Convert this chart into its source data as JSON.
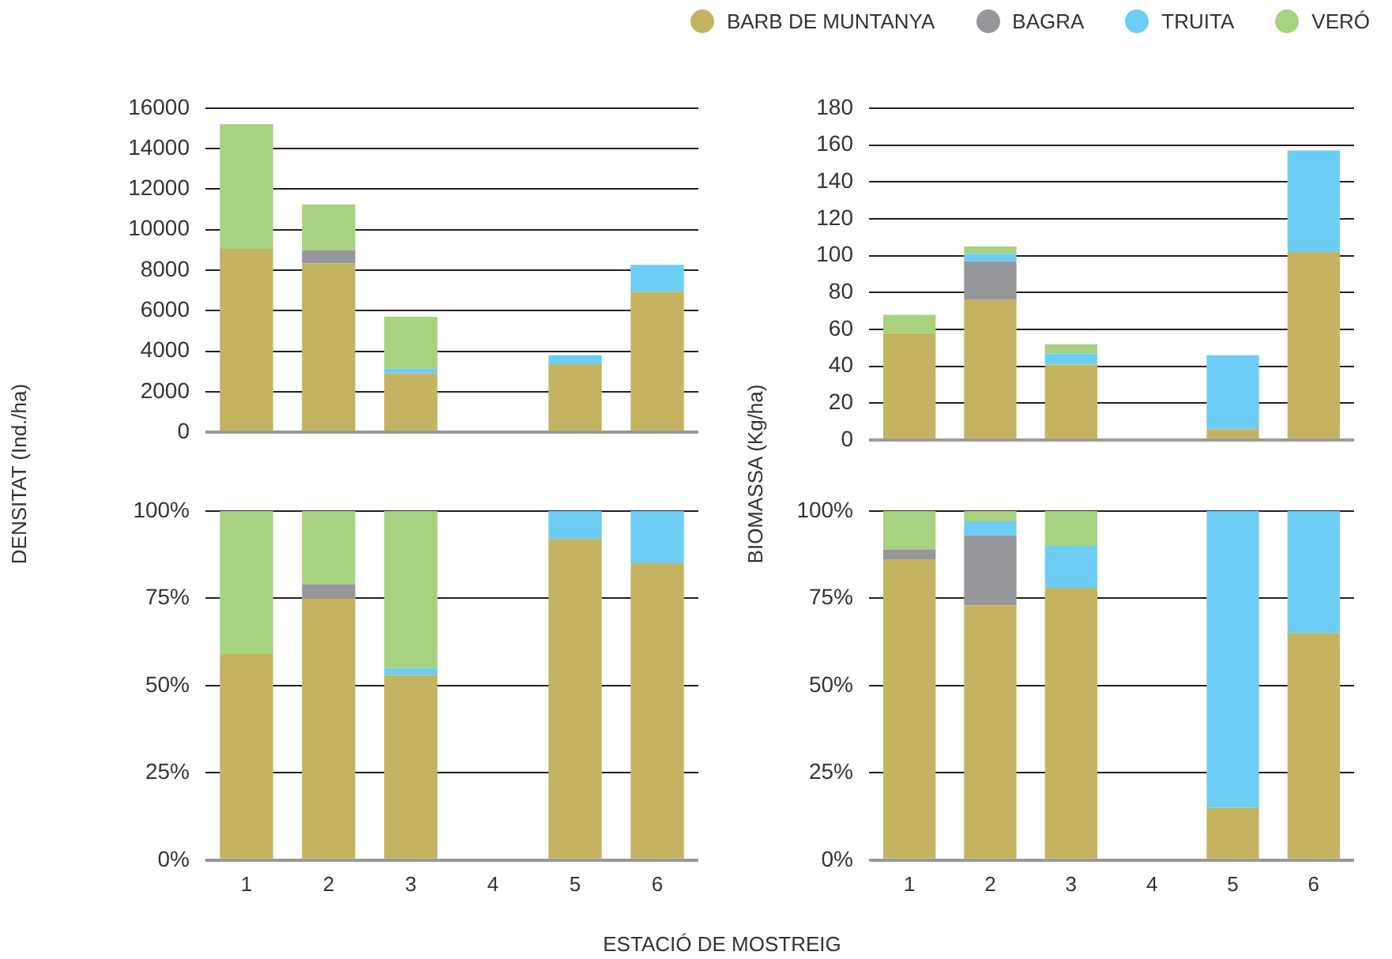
{
  "chart_data": [
    {
      "type": "bar",
      "stacked": true,
      "ylabel": "DENSITAT (Ind./ha)",
      "legend": "top right",
      "grid": "y",
      "tick_labels": "y",
      "categories": [
        "1",
        "2",
        "3",
        "4",
        "5",
        "6"
      ],
      "ylim": [
        0,
        16000
      ],
      "yticks": [
        0,
        2000,
        4000,
        6000,
        8000,
        10000,
        12000,
        14000,
        16000
      ],
      "series": [
        {
          "name": "BARB DE MUNTANYA",
          "color": "#c4b462",
          "values": [
            9050,
            8330,
            2900,
            null,
            3360,
            6940
          ]
        },
        {
          "name": "BAGRA",
          "color": "#96979b",
          "values": [
            0,
            660,
            0,
            null,
            0,
            0
          ]
        },
        {
          "name": "TRUITA",
          "color": "#6dcdf4",
          "values": [
            0,
            0,
            240,
            null,
            440,
            1320
          ]
        },
        {
          "name": "VERÓ",
          "color": "#a7d27f",
          "values": [
            6150,
            2260,
            2560,
            null,
            0,
            0
          ]
        }
      ]
    },
    {
      "type": "bar",
      "stacked": true,
      "ylabel": "BIOMASSA (Kg/ha)",
      "grid": "y",
      "tick_labels": "y",
      "categories": [
        "1",
        "2",
        "3",
        "4",
        "5",
        "6"
      ],
      "ylim": [
        0,
        180
      ],
      "yticks": [
        0,
        20,
        40,
        60,
        80,
        100,
        120,
        140,
        160,
        180
      ],
      "series": [
        {
          "color": "#c4b462",
          "values": [
            58,
            76,
            41,
            null,
            6,
            102
          ]
        },
        {
          "color": "#96979b",
          "values": [
            0,
            21,
            0,
            null,
            0,
            0
          ]
        },
        {
          "color": "#6dcdf4",
          "values": [
            0,
            4,
            6,
            null,
            40,
            55
          ]
        },
        {
          "color": "#a7d27f",
          "values": [
            10,
            4,
            5,
            null,
            0,
            0
          ]
        }
      ]
    },
    {
      "type": "bar",
      "stacked": true,
      "xlabel": "ESTACIÓ DE MOSTREIG",
      "grid": "y",
      "categories": [
        "1",
        "2",
        "3",
        "4",
        "5",
        "6"
      ],
      "ylim": [
        0,
        100
      ],
      "yticks": [
        {
          "value": 0,
          "label": "0%"
        },
        {
          "value": 25,
          "label": "25%"
        },
        {
          "value": 50,
          "label": "50%"
        },
        {
          "value": 75,
          "label": "75%"
        },
        {
          "value": 100,
          "label": "100%"
        }
      ],
      "series": [
        {
          "color": "#c4b462",
          "values": [
            59,
            75,
            53,
            null,
            92,
            85
          ]
        },
        {
          "color": "#96979b",
          "values": [
            0,
            4,
            0,
            null,
            0,
            0
          ]
        },
        {
          "color": "#6dcdf4",
          "values": [
            0,
            0,
            2,
            null,
            8,
            15
          ]
        },
        {
          "color": "#a7d27f",
          "values": [
            41,
            21,
            45,
            null,
            0,
            0
          ]
        }
      ]
    },
    {
      "type": "bar",
      "stacked": true,
      "grid": "y",
      "categories": [
        "1",
        "2",
        "3",
        "4",
        "5",
        "6"
      ],
      "ylim": [
        0,
        100
      ],
      "yticks": [
        {
          "value": 0,
          "label": "0%"
        },
        {
          "value": 25,
          "label": "25%"
        },
        {
          "value": 50,
          "label": "50%"
        },
        {
          "value": 75,
          "label": "75%"
        },
        {
          "value": 100,
          "label": "100%"
        }
      ],
      "series": [
        {
          "color": "#c4b462",
          "values": [
            86,
            73,
            78,
            null,
            15,
            65
          ]
        },
        {
          "color": "#96979b",
          "values": [
            3,
            20,
            0,
            null,
            0,
            0
          ]
        },
        {
          "color": "#6dcdf4",
          "values": [
            0,
            4,
            12,
            null,
            85,
            35
          ]
        },
        {
          "color": "#a7d27f",
          "values": [
            11,
            3,
            10,
            null,
            0,
            0
          ]
        }
      ]
    }
  ]
}
